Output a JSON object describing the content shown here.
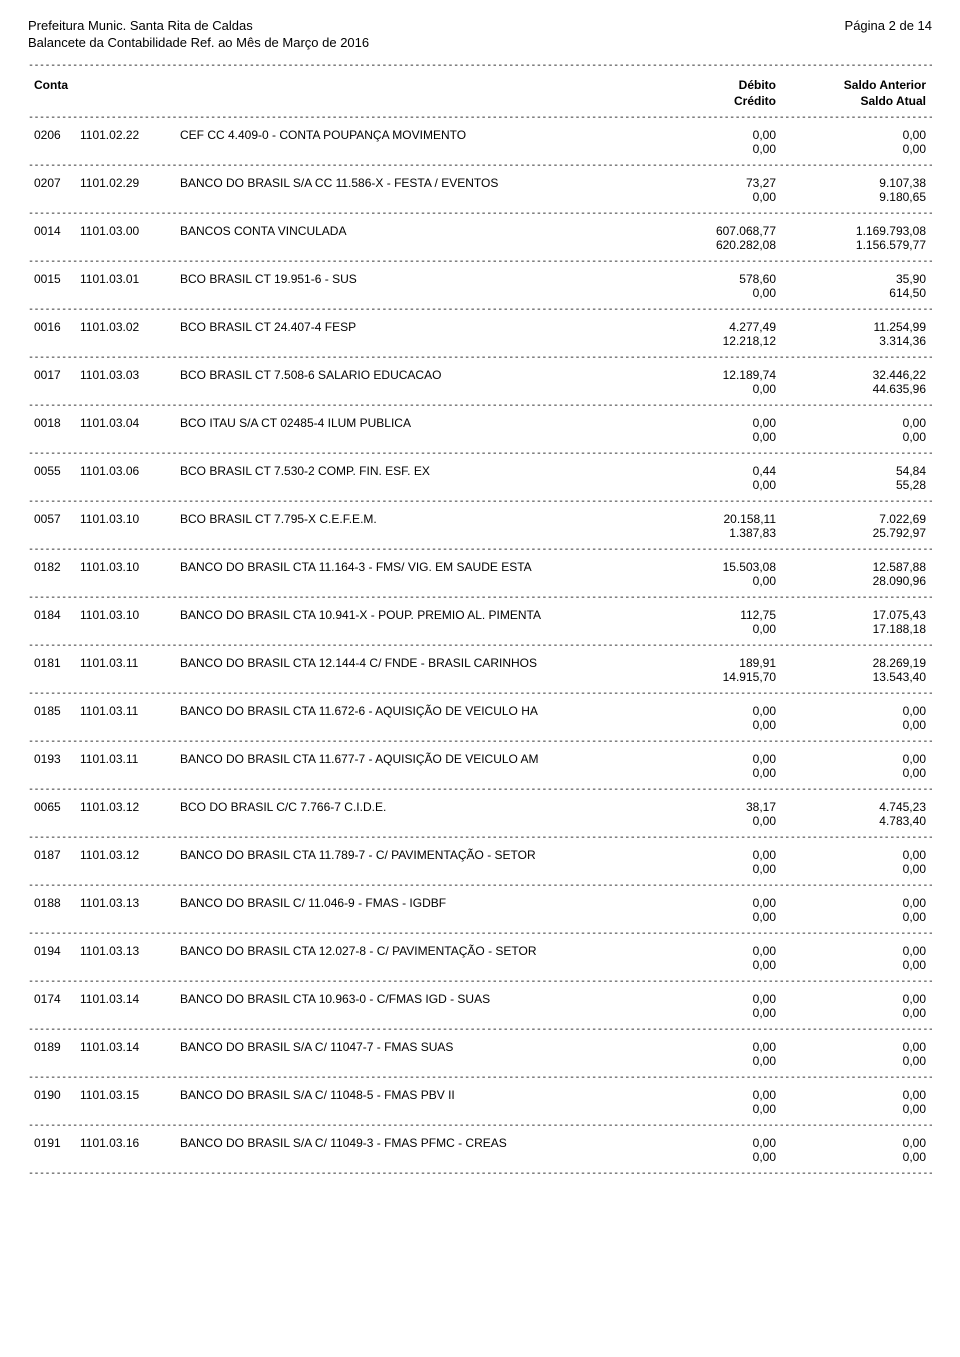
{
  "header": {
    "org": "Prefeitura Munic. Santa Rita de Caldas",
    "page": "Página 2 de 14",
    "subtitle": "Balancete da Contabilidade Ref. ao Mês de Março de 2016"
  },
  "columns": {
    "conta": "Conta",
    "debito": "Débito",
    "credito": "Crédito",
    "saldo_anterior": "Saldo Anterior",
    "saldo_atual": "Saldo Atual"
  },
  "rows": [
    {
      "code": "0206",
      "acct": "1101.02.22",
      "desc": "CEF CC 4.409-0 - CONTA POUPANÇA MOVIMENTO",
      "deb": "0,00",
      "sant": "0,00",
      "cred": "0,00",
      "satu": "0,00"
    },
    {
      "code": "0207",
      "acct": "1101.02.29",
      "desc": "BANCO DO BRASIL S/A CC 11.586-X - FESTA / EVENTOS",
      "deb": "73,27",
      "sant": "9.107,38",
      "cred": "0,00",
      "satu": "9.180,65"
    },
    {
      "code": "0014",
      "acct": "1101.03.00",
      "desc": "BANCOS CONTA VINCULADA",
      "deb": "607.068,77",
      "sant": "1.169.793,08",
      "cred": "620.282,08",
      "satu": "1.156.579,77"
    },
    {
      "code": "0015",
      "acct": "1101.03.01",
      "desc": "BCO BRASIL CT 19.951-6 - SUS",
      "deb": "578,60",
      "sant": "35,90",
      "cred": "0,00",
      "satu": "614,50"
    },
    {
      "code": "0016",
      "acct": "1101.03.02",
      "desc": "BCO BRASIL CT 24.407-4 FESP",
      "deb": "4.277,49",
      "sant": "11.254,99",
      "cred": "12.218,12",
      "satu": "3.314,36"
    },
    {
      "code": "0017",
      "acct": "1101.03.03",
      "desc": "BCO BRASIL CT 7.508-6 SALARIO EDUCACAO",
      "deb": "12.189,74",
      "sant": "32.446,22",
      "cred": "0,00",
      "satu": "44.635,96"
    },
    {
      "code": "0018",
      "acct": "1101.03.04",
      "desc": "BCO ITAU S/A CT 02485-4 ILUM PUBLICA",
      "deb": "0,00",
      "sant": "0,00",
      "cred": "0,00",
      "satu": "0,00"
    },
    {
      "code": "0055",
      "acct": "1101.03.06",
      "desc": "BCO BRASIL CT 7.530-2 COMP. FIN. ESF. EX",
      "deb": "0,44",
      "sant": "54,84",
      "cred": "0,00",
      "satu": "55,28"
    },
    {
      "code": "0057",
      "acct": "1101.03.10",
      "desc": "BCO BRASIL CT 7.795-X C.E.F.E.M.",
      "deb": "20.158,11",
      "sant": "7.022,69",
      "cred": "1.387,83",
      "satu": "25.792,97"
    },
    {
      "code": "0182",
      "acct": "1101.03.10",
      "desc": "BANCO DO BRASIL CTA 11.164-3 - FMS/ VIG. EM SAUDE ESTA",
      "deb": "15.503,08",
      "sant": "12.587,88",
      "cred": "0,00",
      "satu": "28.090,96"
    },
    {
      "code": "0184",
      "acct": "1101.03.10",
      "desc": "BANCO DO BRASIL CTA 10.941-X - POUP. PREMIO AL. PIMENTA",
      "deb": "112,75",
      "sant": "17.075,43",
      "cred": "0,00",
      "satu": "17.188,18"
    },
    {
      "code": "0181",
      "acct": "1101.03.11",
      "desc": "BANCO DO BRASIL CTA 12.144-4 C/ FNDE - BRASIL CARINHOS",
      "deb": "189,91",
      "sant": "28.269,19",
      "cred": "14.915,70",
      "satu": "13.543,40"
    },
    {
      "code": "0185",
      "acct": "1101.03.11",
      "desc": "BANCO DO BRASIL CTA 11.672-6 - AQUISIÇÃO DE VEICULO HA",
      "deb": "0,00",
      "sant": "0,00",
      "cred": "0,00",
      "satu": "0,00"
    },
    {
      "code": "0193",
      "acct": "1101.03.11",
      "desc": "BANCO DO BRASIL CTA 11.677-7 - AQUISIÇÃO DE VEICULO AM",
      "deb": "0,00",
      "sant": "0,00",
      "cred": "0,00",
      "satu": "0,00"
    },
    {
      "code": "0065",
      "acct": "1101.03.12",
      "desc": "BCO DO BRASIL C/C 7.766-7 C.I.D.E.",
      "deb": "38,17",
      "sant": "4.745,23",
      "cred": "0,00",
      "satu": "4.783,40"
    },
    {
      "code": "0187",
      "acct": "1101.03.12",
      "desc": "BANCO DO BRASIL CTA 11.789-7 - C/ PAVIMENTAÇÃO - SETOR",
      "deb": "0,00",
      "sant": "0,00",
      "cred": "0,00",
      "satu": "0,00"
    },
    {
      "code": "0188",
      "acct": "1101.03.13",
      "desc": "BANCO DO BRASIL C/ 11.046-9 - FMAS - IGDBF",
      "deb": "0,00",
      "sant": "0,00",
      "cred": "0,00",
      "satu": "0,00"
    },
    {
      "code": "0194",
      "acct": "1101.03.13",
      "desc": "BANCO DO BRASIL CTA 12.027-8 - C/ PAVIMENTAÇÃO - SETOR",
      "deb": "0,00",
      "sant": "0,00",
      "cred": "0,00",
      "satu": "0,00"
    },
    {
      "code": "0174",
      "acct": "1101.03.14",
      "desc": "BANCO DO BRASIL CTA 10.963-0 - C/FMAS IGD - SUAS",
      "deb": "0,00",
      "sant": "0,00",
      "cred": "0,00",
      "satu": "0,00"
    },
    {
      "code": "0189",
      "acct": "1101.03.14",
      "desc": "BANCO DO BRASIL S/A C/ 11047-7 - FMAS SUAS",
      "deb": "0,00",
      "sant": "0,00",
      "cred": "0,00",
      "satu": "0,00"
    },
    {
      "code": "0190",
      "acct": "1101.03.15",
      "desc": "BANCO DO BRASIL S/A C/ 11048-5 - FMAS PBV II",
      "deb": "0,00",
      "sant": "0,00",
      "cred": "0,00",
      "satu": "0,00"
    },
    {
      "code": "0191",
      "acct": "1101.03.16",
      "desc": "BANCO DO BRASIL S/A C/ 11049-3 - FMAS PFMC - CREAS",
      "deb": "0,00",
      "sant": "0,00",
      "cred": "0,00",
      "satu": "0,00"
    }
  ],
  "dash": "------------------------------------------------------------------------------------------------------------------------------------------------------------------------------------------------"
}
